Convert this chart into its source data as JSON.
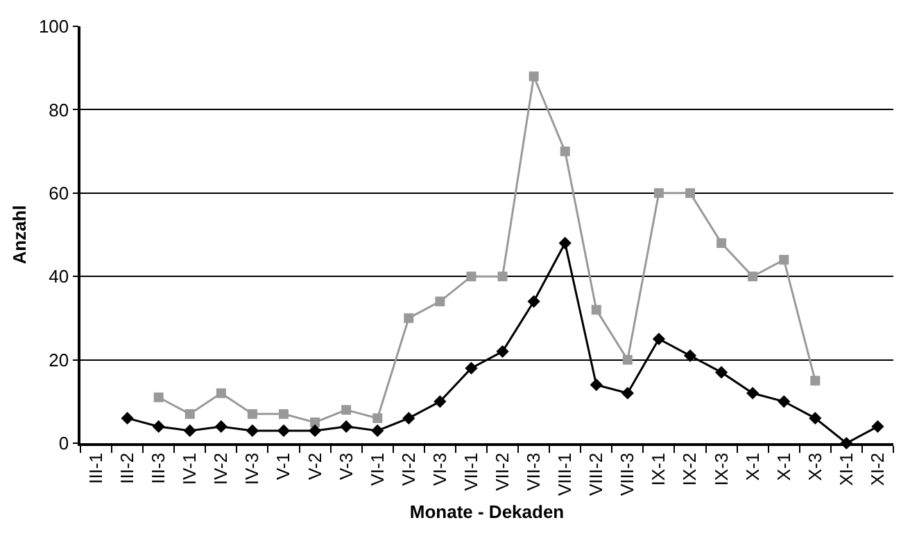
{
  "chart_data": {
    "type": "line",
    "xlabel": "Monate - Dekaden",
    "ylabel": "Anzahl",
    "categories": [
      "III-1",
      "III-2",
      "III-3",
      "IV-1",
      "IV-2",
      "IV-3",
      "V-1",
      "V-2",
      "V-3",
      "VI-1",
      "VI-2",
      "VI-3",
      "VII-1",
      "VII-2",
      "VII-3",
      "VIII-1",
      "VIII-2",
      "VIII-3",
      "IX-1",
      "IX-2",
      "IX-3",
      "X-1",
      "X-1",
      "X-3",
      "XI-1",
      "XI-2"
    ],
    "series": [
      {
        "color": "#999999",
        "marker": "square",
        "values": [
          null,
          null,
          11,
          7,
          12,
          7,
          7,
          5,
          8,
          6,
          30,
          34,
          40,
          40,
          88,
          70,
          32,
          20,
          60,
          60,
          48,
          40,
          44,
          15,
          null,
          null
        ]
      },
      {
        "color": "#000000",
        "marker": "diamond",
        "values": [
          null,
          6,
          4,
          3,
          4,
          3,
          3,
          3,
          4,
          3,
          6,
          10,
          18,
          22,
          34,
          48,
          14,
          12,
          25,
          21,
          17,
          12,
          10,
          6,
          0,
          4
        ]
      }
    ],
    "ylim": [
      0,
      100
    ],
    "yticks": [
      0,
      20,
      40,
      60,
      80,
      100
    ],
    "grid": "y"
  }
}
